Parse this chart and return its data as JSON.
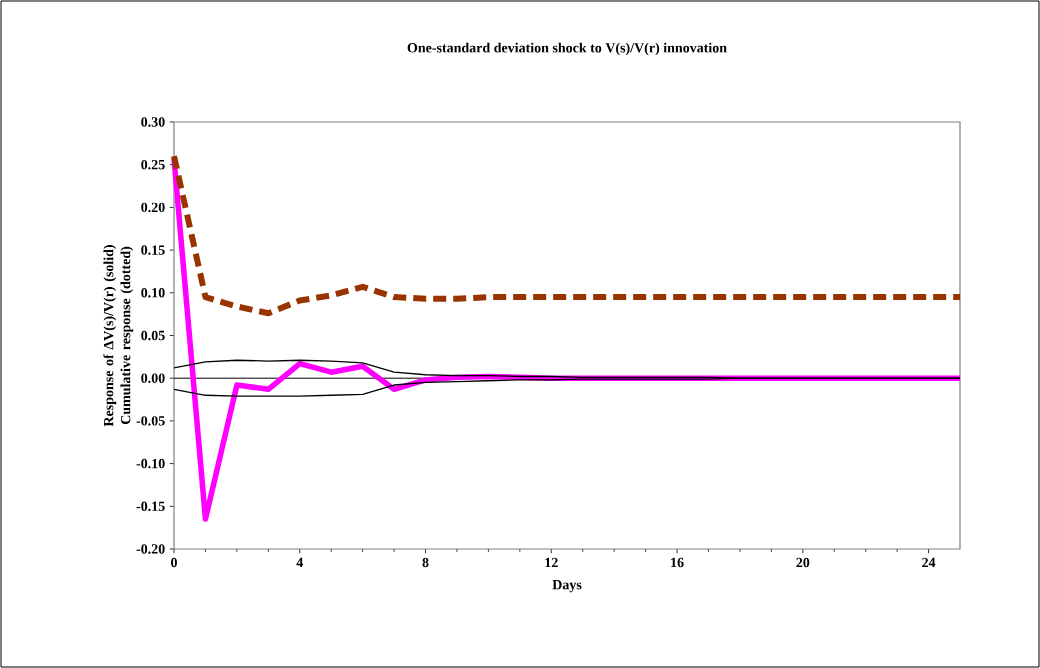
{
  "chart_data": {
    "type": "line",
    "title": "One-standard deviation shock to V(s)/V(r) innovation",
    "xlabel": "Days",
    "ylabel": "Response of ΔV(s)/V(r) (solid) Cumulative response (dotted)",
    "x": [
      0,
      1,
      2,
      3,
      4,
      5,
      6,
      7,
      8,
      9,
      10,
      11,
      12,
      13,
      14,
      15,
      16,
      17,
      18,
      19,
      20,
      21,
      22,
      23,
      24,
      25
    ],
    "series": [
      {
        "color": "#ff00ff",
        "line_style": "solid",
        "values": [
          0.257,
          -0.165,
          -0.008,
          -0.013,
          0.017,
          0.007,
          0.014,
          -0.013,
          -0.002,
          0.001,
          0.002,
          0.001,
          0,
          0,
          0,
          0,
          0,
          0,
          0,
          0,
          0,
          0,
          0,
          0,
          0,
          0
        ]
      },
      {
        "color": "#993300",
        "line_style": "dashed",
        "values": [
          0.26,
          0.095,
          0.084,
          0.076,
          0.091,
          0.097,
          0.107,
          0.095,
          0.093,
          0.093,
          0.095,
          0.095,
          0.095,
          0.095,
          0.095,
          0.095,
          0.095,
          0.095,
          0.095,
          0.095,
          0.095,
          0.095,
          0.095,
          0.095,
          0.095,
          0.095
        ]
      },
      {
        "color": "#000000",
        "line_style": "solid",
        "values": [
          0.012,
          0.019,
          0.021,
          0.02,
          0.021,
          0.02,
          0.018,
          0.007,
          0.004,
          0.003,
          0.003,
          0.002,
          0.002,
          0.001,
          0.001,
          0.001,
          0.001,
          0.001,
          0,
          0,
          0,
          0,
          0,
          0,
          0,
          0
        ]
      },
      {
        "color": "#000000",
        "line_style": "solid",
        "values": [
          -0.013,
          -0.02,
          -0.021,
          -0.021,
          -0.021,
          -0.02,
          -0.019,
          -0.008,
          -0.005,
          -0.004,
          -0.003,
          -0.002,
          -0.002,
          -0.001,
          -0.001,
          -0.001,
          -0.001,
          -0.001,
          0,
          0,
          0,
          0,
          0,
          0,
          0,
          0
        ]
      }
    ],
    "xlim": [
      0,
      25
    ],
    "xticks": [
      0,
      4,
      8,
      12,
      16,
      20,
      24
    ],
    "ylim": [
      -0.2,
      0.3
    ],
    "yticks": [
      {
        "value": -0.2,
        "label": "-0.20"
      },
      {
        "value": -0.15,
        "label": "-0.15"
      },
      {
        "value": -0.1,
        "label": "-0.10"
      },
      {
        "value": -0.05,
        "label": "-0.05"
      },
      {
        "value": 0,
        "label": "0.00"
      },
      {
        "value": 0.05,
        "label": "0.05"
      },
      {
        "value": 0.1,
        "label": "0.10"
      },
      {
        "value": 0.15,
        "label": "0.15"
      },
      {
        "value": 0.2,
        "label": "0.20"
      },
      {
        "value": 0.25,
        "label": "0.25"
      },
      {
        "value": 0.3,
        "label": "0.30"
      }
    ],
    "ref_lines": [
      {
        "axis": "y",
        "value": 0,
        "color": "#000000"
      }
    ],
    "grid": false
  }
}
